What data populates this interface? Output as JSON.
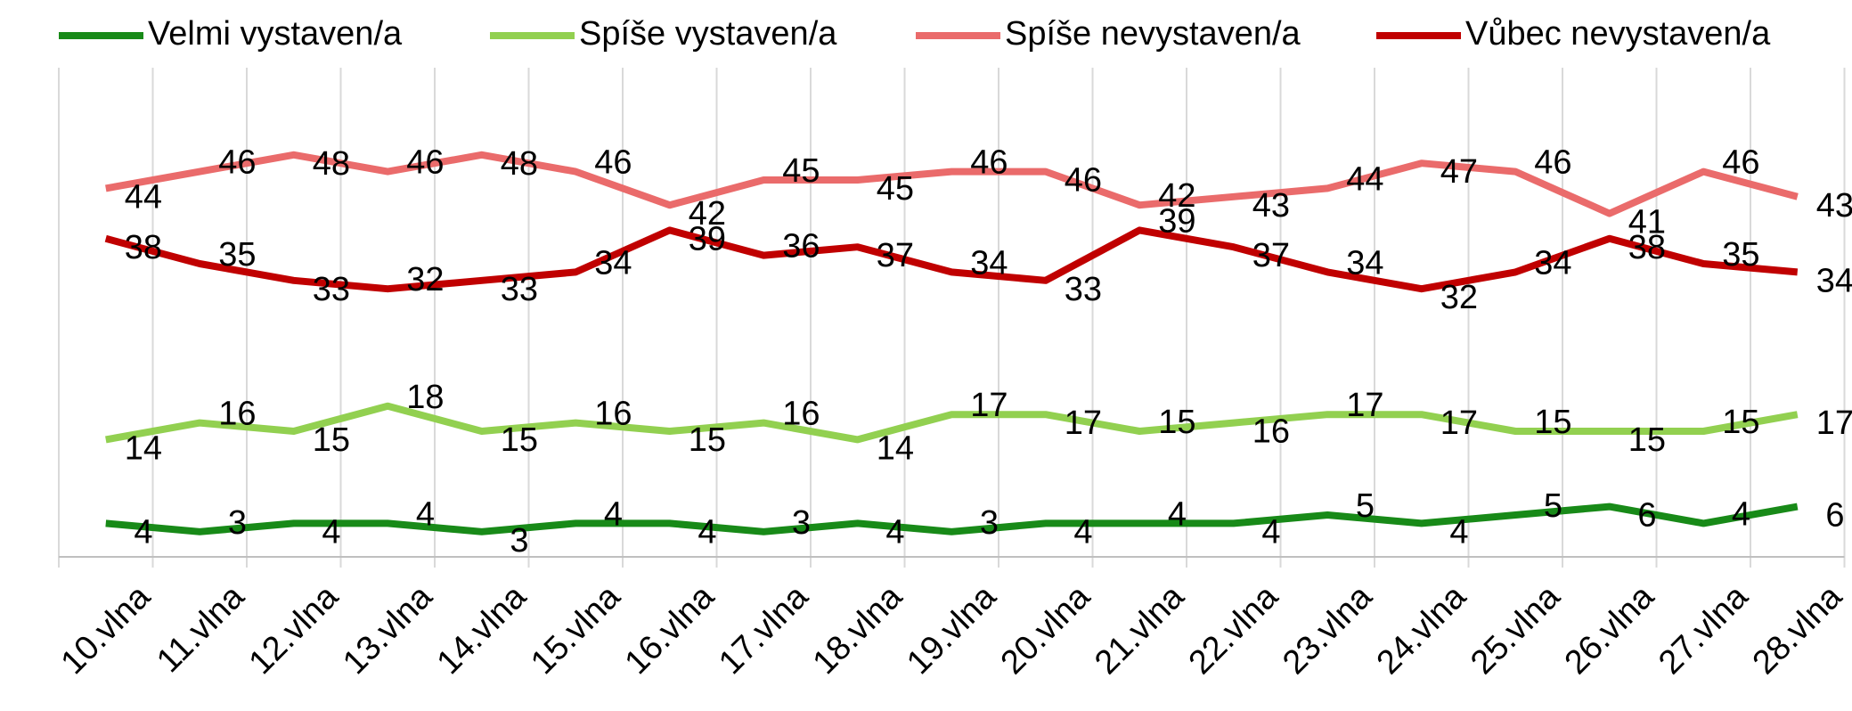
{
  "chart_data": {
    "type": "line",
    "categories": [
      "10.vlna",
      "11.vlna",
      "12.vlna",
      "13.vlna",
      "14.vlna",
      "15.vlna",
      "16.vlna",
      "17.vlna",
      "18.vlna",
      "19.vlna",
      "20.vlna",
      "21.vlna",
      "22.vlna",
      "23.vlna",
      "24.vlna",
      "25.vlna",
      "26.vlna",
      "27.vlna",
      "28.vlna"
    ],
    "series": [
      {
        "name": "Velmi vystaven/a",
        "color": "#188a18",
        "values": [
          4,
          3,
          4,
          4,
          3,
          4,
          4,
          3,
          4,
          3,
          4,
          4,
          4,
          5,
          4,
          5,
          6,
          4,
          6
        ]
      },
      {
        "name": "Spíše vystaven/a",
        "color": "#92d050",
        "values": [
          14,
          16,
          15,
          18,
          15,
          16,
          15,
          16,
          14,
          17,
          17,
          15,
          16,
          17,
          17,
          15,
          15,
          15,
          17
        ]
      },
      {
        "name": "Spíše nevystaven/a",
        "color": "#ea6b6b",
        "values": [
          44,
          46,
          48,
          46,
          48,
          46,
          42,
          45,
          45,
          46,
          46,
          42,
          43,
          44,
          47,
          46,
          41,
          46,
          43
        ]
      },
      {
        "name": "Vůbec nevystaven/a",
        "color": "#c00000",
        "values": [
          38,
          35,
          33,
          32,
          33,
          34,
          39,
          36,
          37,
          34,
          33,
          39,
          37,
          34,
          32,
          34,
          38,
          35,
          34
        ]
      }
    ],
    "ylim": [
      0,
      60
    ],
    "grid": true,
    "legend": "top"
  }
}
